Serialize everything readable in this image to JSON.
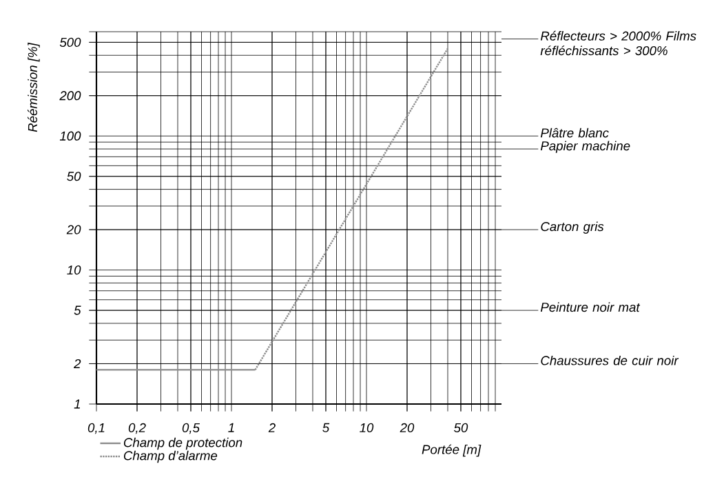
{
  "chart_data": {
    "type": "line",
    "xlabel": "Portée [m]",
    "ylabel": "Réémission [%]",
    "log": "xy",
    "grid": true,
    "legend": "bottom left",
    "xlim": [
      0.1,
      100
    ],
    "ylim": [
      1,
      600
    ],
    "xticks": [
      {
        "value": 0.1,
        "label": "0,1"
      },
      {
        "value": 0.2,
        "label": "0,2"
      },
      {
        "value": 0.5,
        "label": "0,5"
      },
      1,
      2,
      5,
      10,
      20,
      50
    ],
    "yticks": [
      1,
      2,
      5,
      10,
      20,
      50,
      100,
      200,
      500
    ],
    "series": [
      {
        "name": "Champ de protection",
        "color": "#8c8c8c",
        "line_style": "solid",
        "x": [
          0.1,
          1.5
        ],
        "values": [
          1.8,
          1.8
        ]
      },
      {
        "name": "Champ d’alarme",
        "color": "#8c8c8c",
        "line_style": "dotted",
        "x": [
          1.5,
          40
        ],
        "values": [
          1.8,
          450
        ]
      }
    ],
    "ref_lines": [
      {
        "axis": "y",
        "value": 530,
        "label": "Réflecteurs > 2000% Films réfléchissants > 300%"
      },
      {
        "axis": "y",
        "value": 100,
        "label": "Plâtre blanc"
      },
      {
        "axis": "y",
        "value": 80,
        "label": "Papier machine"
      },
      {
        "axis": "y",
        "value": 20,
        "label": "Carton gris"
      },
      {
        "axis": "y",
        "value": 5,
        "label": "Peinture noir mat"
      },
      {
        "axis": "y",
        "value": 2,
        "label": "Chaussures de cuir noir"
      }
    ]
  }
}
